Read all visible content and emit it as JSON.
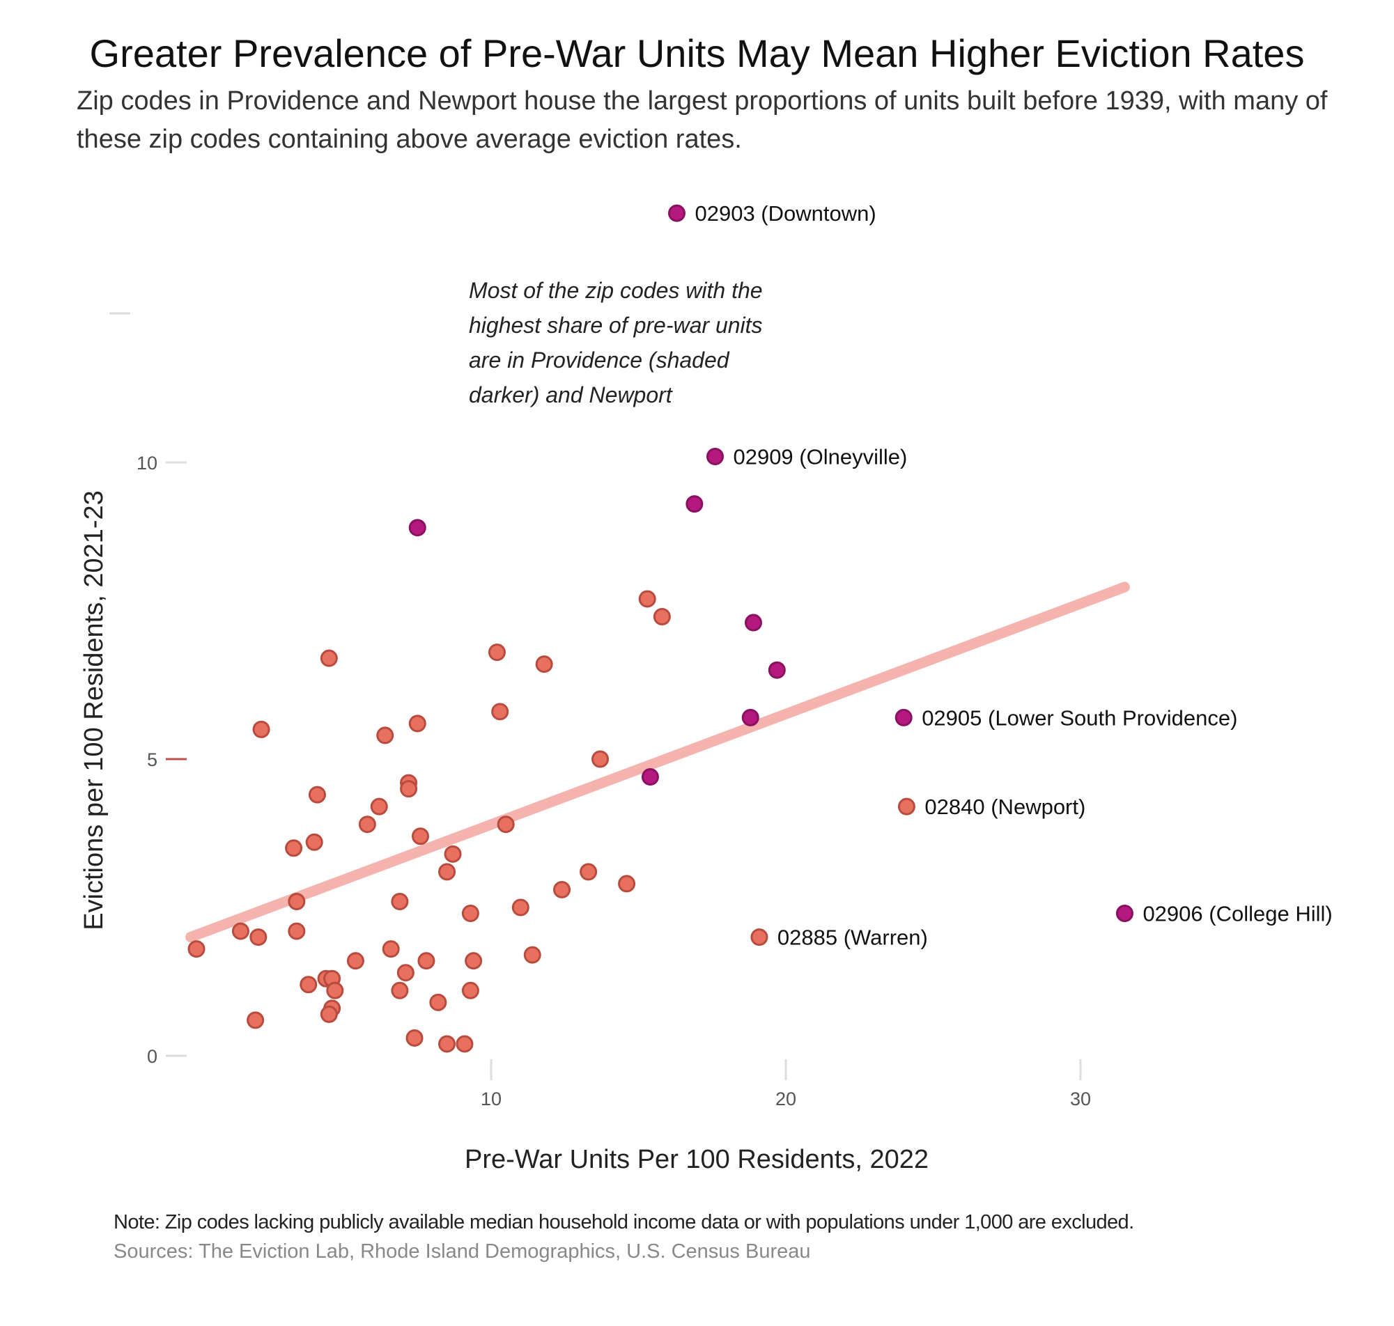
{
  "title": "Greater Prevalence of Pre-War Units May Mean Higher Eviction Rates",
  "subtitle": "Zip codes in Providence and Newport house the largest proportions of units built before 1939, with many of these zip codes containing above average eviction rates.",
  "annotation": [
    "Most of the zip codes with the",
    "highest share of pre-war units",
    "are in Providence (shaded",
    "darker)  and Newport"
  ],
  "note": "Note: Zip codes lacking publicly available median household income data or with populations under 1,000 are excluded.",
  "sources": "Sources: The Eviction Lab, Rhode Island Demographics, U.S. Census Bureau",
  "colors": {
    "providence": "#b5187f",
    "providence_stroke": "#8a1060",
    "other": "#e8705f",
    "other_stroke": "#b94b3e",
    "trend": "#f5b3ae",
    "mean_tick": "#c0504d"
  },
  "chart_data": {
    "type": "scatter",
    "xlabel": "Pre-War Units Per 100 Residents, 2022",
    "ylabel": "Evictions per 100 Residents, 2021-23",
    "xlim": [
      -0.5,
      38
    ],
    "ylim": [
      -0.5,
      14
    ],
    "xticks": [
      10,
      20,
      30
    ],
    "yticks": [
      0,
      5,
      10
    ],
    "grid": false,
    "mean_marker_y": 5,
    "trendline": {
      "x": [
        -0.2,
        31.5
      ],
      "y": [
        2.0,
        7.9
      ]
    },
    "series": [
      {
        "group": "providence",
        "points": [
          {
            "x": 16.3,
            "y": 14.2,
            "label": "02903 (Downtown)"
          },
          {
            "x": 17.6,
            "y": 10.1,
            "label": "02909 (Olneyville)"
          },
          {
            "x": 16.9,
            "y": 9.3
          },
          {
            "x": 7.5,
            "y": 8.9
          },
          {
            "x": 18.9,
            "y": 7.3
          },
          {
            "x": 19.7,
            "y": 6.5
          },
          {
            "x": 18.8,
            "y": 5.7
          },
          {
            "x": 24.0,
            "y": 5.7,
            "label": "02905 (Lower South Providence)"
          },
          {
            "x": 15.4,
            "y": 4.7
          },
          {
            "x": 31.5,
            "y": 2.4,
            "label": "02906 (College Hill)"
          }
        ]
      },
      {
        "group": "other",
        "points": [
          {
            "x": 24.1,
            "y": 4.2,
            "label": "02840 (Newport)"
          },
          {
            "x": 19.1,
            "y": 2.0,
            "label": "02885 (Warren)"
          },
          {
            "x": 15.3,
            "y": 7.7
          },
          {
            "x": 15.8,
            "y": 7.4
          },
          {
            "x": 10.2,
            "y": 6.8
          },
          {
            "x": 11.8,
            "y": 6.6
          },
          {
            "x": 4.5,
            "y": 6.7
          },
          {
            "x": 10.3,
            "y": 5.8
          },
          {
            "x": 2.2,
            "y": 5.5
          },
          {
            "x": 7.5,
            "y": 5.6
          },
          {
            "x": 6.4,
            "y": 5.4
          },
          {
            "x": 13.7,
            "y": 5.0
          },
          {
            "x": 7.2,
            "y": 4.6
          },
          {
            "x": 7.2,
            "y": 4.5
          },
          {
            "x": 4.1,
            "y": 4.4
          },
          {
            "x": 6.2,
            "y": 4.2
          },
          {
            "x": 5.8,
            "y": 3.9
          },
          {
            "x": 10.5,
            "y": 3.9
          },
          {
            "x": 7.6,
            "y": 3.7
          },
          {
            "x": 3.3,
            "y": 3.5
          },
          {
            "x": 4.0,
            "y": 3.6
          },
          {
            "x": 8.7,
            "y": 3.4
          },
          {
            "x": 8.5,
            "y": 3.1
          },
          {
            "x": 13.3,
            "y": 3.1
          },
          {
            "x": 14.6,
            "y": 2.9
          },
          {
            "x": 12.4,
            "y": 2.8
          },
          {
            "x": 3.4,
            "y": 2.6
          },
          {
            "x": 6.9,
            "y": 2.6
          },
          {
            "x": 11.0,
            "y": 2.5
          },
          {
            "x": 9.3,
            "y": 2.4
          },
          {
            "x": 1.5,
            "y": 2.1
          },
          {
            "x": 3.4,
            "y": 2.1
          },
          {
            "x": 2.1,
            "y": 2.0
          },
          {
            "x": 0.0,
            "y": 1.8
          },
          {
            "x": 6.6,
            "y": 1.8
          },
          {
            "x": 11.4,
            "y": 1.7
          },
          {
            "x": 7.8,
            "y": 1.6
          },
          {
            "x": 5.4,
            "y": 1.6
          },
          {
            "x": 9.4,
            "y": 1.6
          },
          {
            "x": 7.1,
            "y": 1.4
          },
          {
            "x": 4.4,
            "y": 1.3
          },
          {
            "x": 4.6,
            "y": 1.3
          },
          {
            "x": 3.8,
            "y": 1.2
          },
          {
            "x": 4.7,
            "y": 1.1
          },
          {
            "x": 6.9,
            "y": 1.1
          },
          {
            "x": 9.3,
            "y": 1.1
          },
          {
            "x": 8.2,
            "y": 0.9
          },
          {
            "x": 4.6,
            "y": 0.8
          },
          {
            "x": 4.5,
            "y": 0.7
          },
          {
            "x": 2.0,
            "y": 0.6
          },
          {
            "x": 7.4,
            "y": 0.3
          },
          {
            "x": 8.5,
            "y": 0.2
          },
          {
            "x": 9.1,
            "y": 0.2
          }
        ]
      }
    ]
  }
}
